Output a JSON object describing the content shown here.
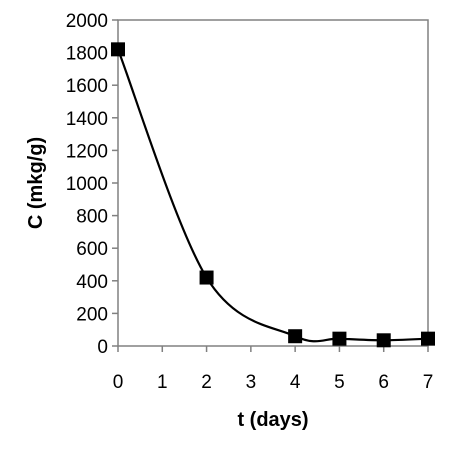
{
  "chart_data": {
    "type": "line",
    "title": "",
    "xlabel": "t (days)",
    "ylabel": "C (mkg/g)",
    "xlim": [
      0,
      7
    ],
    "ylim": [
      0,
      2000
    ],
    "x_ticks": [
      "0",
      "1",
      "2",
      "3",
      "4",
      "5",
      "6",
      "7"
    ],
    "y_ticks": [
      "0",
      "200",
      "400",
      "600",
      "800",
      "1000",
      "1200",
      "1400",
      "1600",
      "1800",
      "2000"
    ],
    "grid": false,
    "legend": "none",
    "series": [
      {
        "marker": "square",
        "line": "smooth",
        "color": "#000000",
        "points": [
          {
            "x": 0,
            "y": 1820
          },
          {
            "x": 2,
            "y": 420
          },
          {
            "x": 4,
            "y": 60
          },
          {
            "x": 5,
            "y": 45
          },
          {
            "x": 6,
            "y": 35
          },
          {
            "x": 7,
            "y": 45
          }
        ]
      }
    ]
  }
}
